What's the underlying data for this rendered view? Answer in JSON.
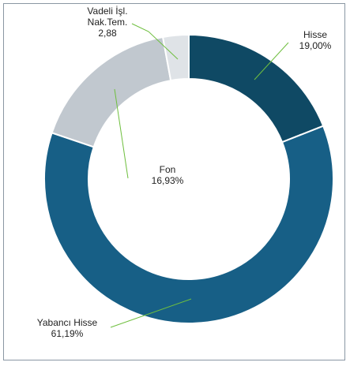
{
  "chart_data": {
    "type": "pie",
    "donut": true,
    "title": "",
    "legend": "none",
    "slices": [
      {
        "label_lines": [
          "Hisse"
        ],
        "value_text": "19,00%",
        "value": 19.0,
        "color": "#0f4964"
      },
      {
        "label_lines": [
          "Yabancı Hisse"
        ],
        "value_text": "61,19%",
        "value": 61.19,
        "color": "#175f86"
      },
      {
        "label_lines": [
          "Fon"
        ],
        "value_text": "16,93%",
        "value": 16.93,
        "color": "#c1c8cf"
      },
      {
        "label_lines": [
          "Vadeli İşl.",
          "Nak.Tem."
        ],
        "value_text": "2,88",
        "value": 2.88,
        "color": "#dfe3e7"
      }
    ],
    "leader_color": "#6fbf3f"
  }
}
